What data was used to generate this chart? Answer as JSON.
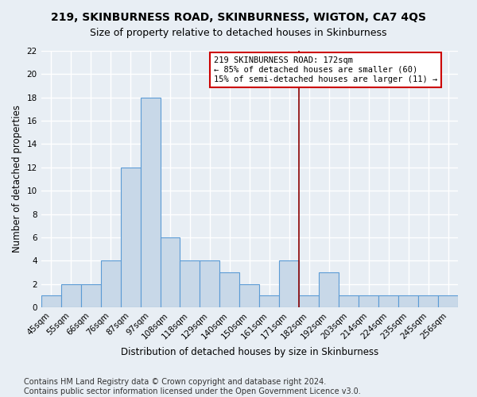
{
  "title1": "219, SKINBURNESS ROAD, SKINBURNESS, WIGTON, CA7 4QS",
  "title2": "Size of property relative to detached houses in Skinburness",
  "xlabel": "Distribution of detached houses by size in Skinburness",
  "ylabel": "Number of detached properties",
  "bin_labels": [
    "45sqm",
    "55sqm",
    "66sqm",
    "76sqm",
    "87sqm",
    "97sqm",
    "108sqm",
    "118sqm",
    "129sqm",
    "140sqm",
    "150sqm",
    "161sqm",
    "171sqm",
    "182sqm",
    "192sqm",
    "203sqm",
    "214sqm",
    "224sqm",
    "235sqm",
    "245sqm",
    "256sqm"
  ],
  "bar_heights": [
    1,
    2,
    2,
    4,
    12,
    18,
    6,
    4,
    4,
    3,
    2,
    1,
    4,
    1,
    3,
    1,
    1,
    1,
    1,
    1,
    1
  ],
  "bar_color": "#c8d8e8",
  "bar_edge_color": "#5b9bd5",
  "vline_color": "#8b0000",
  "annotation_text": "219 SKINBURNESS ROAD: 172sqm\n← 85% of detached houses are smaller (60)\n15% of semi-detached houses are larger (11) →",
  "annotation_box_color": "#ffffff",
  "annotation_edge_color": "#cc0000",
  "ylim": [
    0,
    22
  ],
  "yticks": [
    0,
    2,
    4,
    6,
    8,
    10,
    12,
    14,
    16,
    18,
    20,
    22
  ],
  "footer": "Contains HM Land Registry data © Crown copyright and database right 2024.\nContains public sector information licensed under the Open Government Licence v3.0.",
  "bg_color": "#e8eef4",
  "plot_bg_color": "#e8eef4",
  "grid_color": "#ffffff",
  "title_fontsize": 10,
  "subtitle_fontsize": 9,
  "axis_label_fontsize": 8.5,
  "tick_fontsize": 7.5,
  "footer_fontsize": 7
}
